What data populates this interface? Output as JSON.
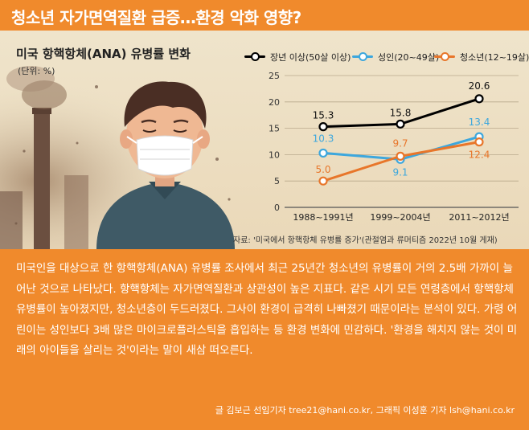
{
  "header": {
    "title": "청소년 자가면역질환 급증…환경 악화 영향?"
  },
  "colors": {
    "accent": "#f08a2c",
    "adult_series": "#000000",
    "young_adult_series": "#3da7dd",
    "youth_series": "#e8762a"
  },
  "chart_data": {
    "type": "line",
    "title": "미국 항핵항체(ANA) 유병률 변화",
    "unit": "(단위: %)",
    "categories": [
      "1988~1991년",
      "1999~2004년",
      "2011~2012년"
    ],
    "series": [
      {
        "name": "장년 이상(50살 이상)",
        "values": [
          15.3,
          15.8,
          20.6
        ],
        "labels": [
          "15.3",
          "15.8",
          "20.6"
        ],
        "color": "#000000"
      },
      {
        "name": "성인(20~49살)",
        "values": [
          10.3,
          9.1,
          13.4
        ],
        "labels": [
          "10.3",
          "9.1",
          "13.4"
        ],
        "color": "#3da7dd"
      },
      {
        "name": "청소년(12~19살)",
        "values": [
          5.0,
          9.7,
          12.4
        ],
        "labels": [
          "5.0",
          "9.7",
          "12.4"
        ],
        "color": "#e8762a"
      }
    ],
    "yticks": [
      "0",
      "5",
      "10",
      "15",
      "20",
      "25"
    ],
    "ylim": [
      0,
      25
    ],
    "grid": true,
    "legend_position": "top"
  },
  "source": "자료: '미국에서 항핵항체 유병률 증가'(관절염과 류머티즘 2022년 10월 게재)",
  "body": {
    "text": "미국인을 대상으로 한 항핵항체(ANA) 유병률 조사에서 최근 25년간 청소년의 유병률이 거의 2.5배 가까이 늘어난 것으로 나타났다. 항핵항체는 자가면역질환과 상관성이 높은 지표다. 같은 시기 모든 연령층에서 항핵항체 유병률이 높아졌지만, 청소년층이 두드러졌다. 그사이 환경이 급격히 나빠졌기 때문이라는 분석이 있다. 가령 어린이는 성인보다 3배 많은 마이크로플라스틱을 흡입하는 등 환경 변화에 민감하다. '환경을 해치지 않는 것이 미래의 아이들을 살리는 것'이라는 말이 새삼 떠오른다.",
    "byline": "글 김보근 선임기자 tree21@hani.co.kr, 그래픽 이성훈 기자 lsh@hani.co.kr"
  }
}
